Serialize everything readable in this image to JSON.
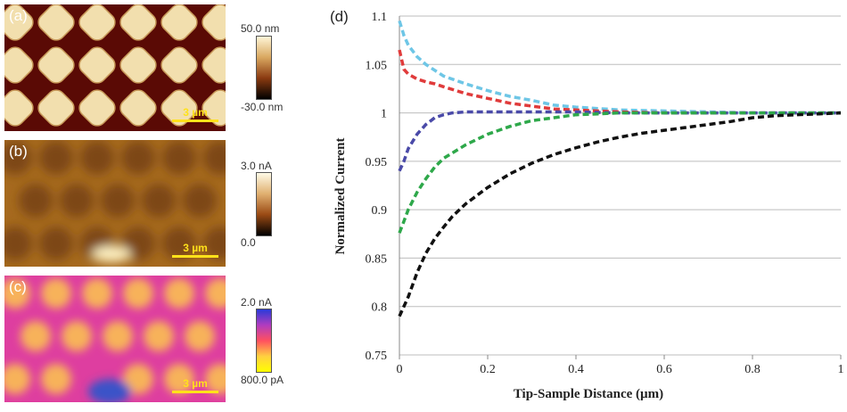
{
  "panels": {
    "a": {
      "label": "(a)",
      "scalebar": "3 µm",
      "colorbar_top": "50.0 nm",
      "colorbar_bottom": "-30.0 nm",
      "colors": {
        "background": "#5a0a05",
        "tile": "#f2dfae",
        "tile_edge": "#c89a5a"
      }
    },
    "b": {
      "label": "(b)",
      "scalebar": "3 µm",
      "colorbar_top": "3.0 nA",
      "colorbar_bottom": "0.0",
      "colors": {
        "background": "#a66a1e",
        "spot": "#7d4714",
        "bright": "#fff3c4"
      }
    },
    "c": {
      "label": "(c)",
      "scalebar": "3 µm",
      "colorbar_top": "2.0 nA",
      "colorbar_bottom": "800.0 pA",
      "colors": {
        "background": "#de3ea0",
        "spot": "#f7b25a",
        "blue": "#3a52c8"
      }
    }
  },
  "chart_data": {
    "type": "line",
    "panel_label": "(d)",
    "title": "",
    "xlabel": "Tip-Sample Distance (µm)",
    "ylabel": "Normalized Current",
    "xlim": [
      0,
      1
    ],
    "ylim": [
      0.75,
      1.1
    ],
    "x_ticks": [
      "0",
      "0.2",
      "0.4",
      "0.6",
      "0.8",
      "1"
    ],
    "y_ticks": [
      "0.75",
      "0.8",
      "0.85",
      "0.9",
      "0.95",
      "1",
      "1.05",
      "1.1"
    ],
    "grid": true,
    "legend": "none",
    "series": [
      {
        "name": "cyan",
        "color": "#6ec6e6",
        "x": [
          0,
          0.01,
          0.02,
          0.04,
          0.06,
          0.08,
          0.1,
          0.15,
          0.2,
          0.25,
          0.3,
          0.35,
          0.4,
          0.5,
          0.6,
          0.7,
          0.8,
          0.9,
          1.0
        ],
        "y": [
          1.095,
          1.08,
          1.07,
          1.058,
          1.05,
          1.044,
          1.038,
          1.03,
          1.023,
          1.017,
          1.013,
          1.008,
          1.006,
          1.003,
          1.002,
          1.001,
          1.0,
          1.0,
          1.0
        ]
      },
      {
        "name": "red",
        "color": "#e03b3b",
        "x": [
          0,
          0.01,
          0.02,
          0.04,
          0.06,
          0.08,
          0.1,
          0.15,
          0.2,
          0.25,
          0.3,
          0.35,
          0.4,
          0.5,
          0.6,
          0.7,
          0.8,
          0.9,
          1.0
        ],
        "y": [
          1.065,
          1.045,
          1.04,
          1.035,
          1.032,
          1.03,
          1.027,
          1.02,
          1.015,
          1.01,
          1.007,
          1.004,
          1.003,
          1.001,
          1.0,
          1.0,
          1.0,
          1.0,
          1.0
        ]
      },
      {
        "name": "blue",
        "color": "#4a4aa8",
        "x": [
          0,
          0.01,
          0.02,
          0.04,
          0.06,
          0.08,
          0.1,
          0.12,
          0.15,
          0.2,
          0.3,
          0.4,
          0.5,
          0.6,
          0.7,
          0.8,
          0.9,
          1.0
        ],
        "y": [
          0.94,
          0.95,
          0.963,
          0.978,
          0.988,
          0.995,
          0.998,
          1.0,
          1.001,
          1.001,
          1.001,
          1.001,
          1.0,
          1.0,
          1.0,
          1.0,
          1.0,
          1.0
        ]
      },
      {
        "name": "green",
        "color": "#2ea84a",
        "x": [
          0,
          0.01,
          0.02,
          0.04,
          0.06,
          0.08,
          0.1,
          0.15,
          0.2,
          0.25,
          0.3,
          0.35,
          0.4,
          0.45,
          0.5,
          0.6,
          0.7,
          0.8,
          0.9,
          1.0
        ],
        "y": [
          0.876,
          0.888,
          0.9,
          0.918,
          0.932,
          0.944,
          0.953,
          0.967,
          0.978,
          0.986,
          0.992,
          0.995,
          0.998,
          0.999,
          1.0,
          1.0,
          1.0,
          1.0,
          1.0,
          1.0
        ]
      },
      {
        "name": "black",
        "color": "#111111",
        "x": [
          0,
          0.02,
          0.04,
          0.06,
          0.08,
          0.1,
          0.12,
          0.15,
          0.2,
          0.25,
          0.3,
          0.35,
          0.4,
          0.45,
          0.5,
          0.55,
          0.6,
          0.65,
          0.7,
          0.75,
          0.8,
          0.85,
          0.9,
          0.95,
          1.0
        ],
        "y": [
          0.79,
          0.81,
          0.835,
          0.855,
          0.87,
          0.882,
          0.893,
          0.906,
          0.923,
          0.937,
          0.948,
          0.957,
          0.964,
          0.97,
          0.975,
          0.979,
          0.982,
          0.985,
          0.988,
          0.991,
          0.995,
          0.997,
          0.998,
          0.999,
          1.0
        ]
      }
    ]
  }
}
